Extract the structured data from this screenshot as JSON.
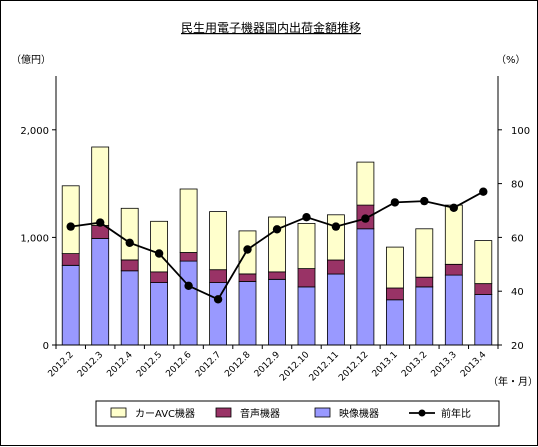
{
  "chart_data": {
    "type": "bar",
    "title": "民生用電子機器国内出荷金額推移",
    "ylabel": "（億円）",
    "y2label": "（%）",
    "xlabel": "（年・月）",
    "ylim": [
      0,
      2500
    ],
    "yticks": [
      0,
      1000,
      2000
    ],
    "ytick_labels": [
      "0",
      "1,000",
      "2,000"
    ],
    "y2lim": [
      20,
      120
    ],
    "y2ticks": [
      20,
      40,
      60,
      80,
      100
    ],
    "y2tick_labels": [
      "20",
      "40",
      "60",
      "80",
      "100"
    ],
    "categories": [
      "2012.2",
      "2012.3",
      "2012.4",
      "2012.5",
      "2012.6",
      "2012.7",
      "2012.8",
      "2012.9",
      "2012.10",
      "2012.11",
      "2012.12",
      "2013.1",
      "2013.2",
      "2013.3",
      "2013.4"
    ],
    "series": [
      {
        "name": "映像機器",
        "kind": "stacked-bar",
        "color": "#9999ff",
        "values": [
          740,
          990,
          690,
          580,
          780,
          580,
          590,
          610,
          540,
          660,
          1080,
          420,
          540,
          650,
          470
        ]
      },
      {
        "name": "音声機器",
        "kind": "stacked-bar",
        "color": "#993366",
        "values": [
          110,
          120,
          100,
          100,
          80,
          120,
          70,
          70,
          170,
          130,
          220,
          110,
          90,
          100,
          100
        ]
      },
      {
        "name": "カーAVC機器",
        "kind": "stacked-bar",
        "color": "#ffffcc",
        "values": [
          630,
          730,
          480,
          470,
          590,
          540,
          400,
          510,
          420,
          420,
          400,
          380,
          450,
          550,
          400
        ]
      },
      {
        "name": "前年比",
        "kind": "line",
        "axis": "right",
        "color": "#000000",
        "values": [
          64,
          65.5,
          58,
          54,
          42,
          37,
          55.5,
          63,
          67.5,
          64,
          67,
          73,
          73.5,
          71,
          77
        ]
      }
    ],
    "legend": {
      "position": "bottom",
      "items": [
        "カーAVC機器",
        "音声機器",
        "映像機器",
        "前年比"
      ]
    },
    "grid": false
  }
}
